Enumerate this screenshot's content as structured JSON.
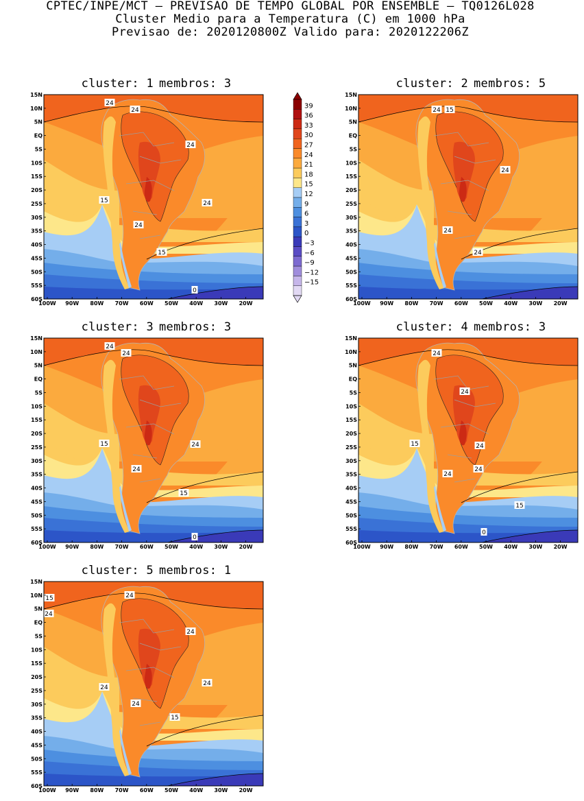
{
  "header": {
    "line1": "CPTEC/INPE/MCT – PREVISAO DE TEMPO GLOBAL POR ENSEMBLE – TQ0126L028",
    "line2": "Cluster Medio para a Temperatura (C) em 1000 hPa",
    "line3": "Previsao de: 2020120800Z   Valido para: 2020122206Z"
  },
  "clusters": [
    {
      "cluster_label": "cluster: 1",
      "members_label": "membros: 3",
      "labels": [
        "24",
        "24",
        "24",
        "24",
        "24",
        "15",
        "15",
        "0"
      ]
    },
    {
      "cluster_label": "cluster: 2",
      "members_label": "membros: 5",
      "labels": [
        "24",
        "24",
        "24",
        "24",
        "15"
      ]
    },
    {
      "cluster_label": "cluster: 3",
      "members_label": "membros: 3",
      "labels": [
        "24",
        "24",
        "24",
        "24",
        "15",
        "15",
        "0"
      ]
    },
    {
      "cluster_label": "cluster: 4",
      "members_label": "membros: 3",
      "labels": [
        "24",
        "24",
        "24",
        "24",
        "24",
        "15",
        "15",
        "0"
      ]
    },
    {
      "cluster_label": "cluster: 5",
      "members_label": "membros: 1",
      "labels": [
        "24",
        "24",
        "24",
        "24",
        "24",
        "24",
        "15",
        "15"
      ]
    }
  ],
  "axes": {
    "lat_labels": [
      "15N",
      "10N",
      "5N",
      "EQ",
      "5S",
      "10S",
      "15S",
      "20S",
      "25S",
      "30S",
      "35S",
      "40S",
      "45S",
      "50S",
      "55S",
      "60S"
    ],
    "lon_labels": [
      "100W",
      "90W",
      "80W",
      "70W",
      "60W",
      "50W",
      "40W",
      "30W",
      "20W"
    ]
  },
  "legend": {
    "levels": [
      "39",
      "36",
      "33",
      "30",
      "27",
      "24",
      "21",
      "18",
      "15",
      "12",
      "9",
      "6",
      "3",
      "0",
      "−3",
      "−6",
      "−9",
      "−12",
      "−15"
    ],
    "colors": [
      "#8b0000",
      "#b01010",
      "#cc2a14",
      "#e0461c",
      "#f0641e",
      "#fa8a2a",
      "#fbaa3e",
      "#fccb5c",
      "#fde78a",
      "#a6cdf5",
      "#74aeea",
      "#4d8fe0",
      "#3a72d6",
      "#2c55c8",
      "#3a3ab8",
      "#5a4cc4",
      "#7d6ad0",
      "#a08ddc",
      "#c6b6ea",
      "#e2d9f4"
    ]
  }
}
